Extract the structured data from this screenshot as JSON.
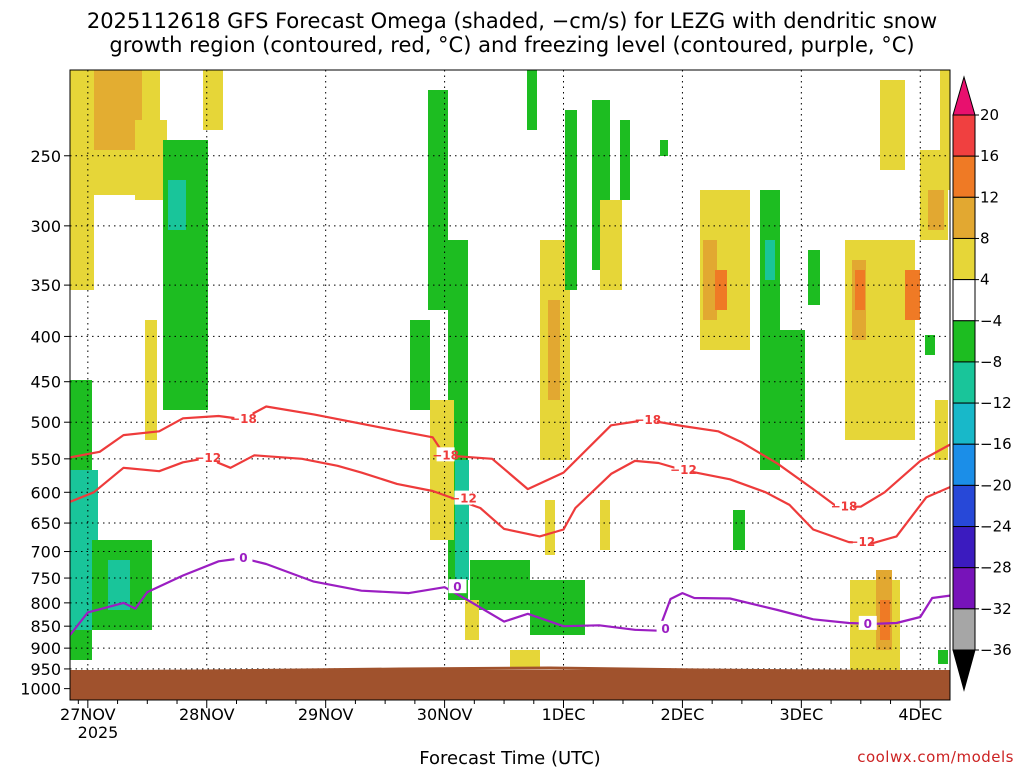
{
  "title_line1": "2025112618 GFS Forecast Omega (shaded, −cm/s) for LEZG with dendritic snow",
  "title_line2": "growth region (contoured, red, °C) and freezing level (contoured, purple, °C)",
  "credit": "coolwx.com/models",
  "chart_data": {
    "type": "heatmap",
    "title": "2025112618 GFS Forecast Omega (shaded, −cm/s) for LEZG with dendritic snow growth region (contoured, red, °C) and freezing level (contoured, purple, °C)",
    "xlabel": "Forecast Time (UTC)",
    "ylabel": "",
    "x_ticks": [
      "27NOV",
      "28NOV",
      "29NOV",
      "30NOV",
      "1DEC",
      "2DEC",
      "3DEC",
      "4DEC"
    ],
    "x_tick_sublabel": "2025",
    "x_range_days": [
      26.85,
      34.25
    ],
    "y_ticks": [
      250,
      300,
      350,
      400,
      450,
      500,
      550,
      600,
      650,
      700,
      750,
      800,
      850,
      900,
      950,
      1000
    ],
    "y_range_hpa": [
      200,
      1030
    ],
    "y_scale": "log",
    "grid": true,
    "colorbar": {
      "labels": [
        "20",
        "16",
        "12",
        "8",
        "4",
        "−4",
        "−8",
        "−12",
        "−16",
        "−20",
        "−24",
        "−28",
        "−32",
        "−36"
      ],
      "colors": [
        "#e8106e",
        "#f04040",
        "#ef7a25",
        "#e2a831",
        "#e6d638",
        "#ffffff",
        "#1dbd21",
        "#19c59a",
        "#18b8c9",
        "#1b8ee8",
        "#2748d8",
        "#3b1bbf",
        "#7713b9",
        "#a6a6a6",
        "#000000"
      ]
    },
    "contours": [
      {
        "name": "-18",
        "color": "#ee3b3b",
        "points": [
          [
            26.85,
            548
          ],
          [
            27.1,
            540
          ],
          [
            27.3,
            517
          ],
          [
            27.6,
            512
          ],
          [
            27.8,
            495
          ],
          [
            28.1,
            492
          ],
          [
            28.3,
            496
          ],
          [
            28.5,
            480
          ],
          [
            28.9,
            490
          ],
          [
            29.5,
            508
          ],
          [
            29.9,
            520
          ],
          [
            30.0,
            545
          ],
          [
            30.4,
            550
          ],
          [
            30.7,
            595
          ],
          [
            31.0,
            570
          ],
          [
            31.4,
            504
          ],
          [
            31.7,
            497
          ],
          [
            32.0,
            505
          ],
          [
            32.3,
            512
          ],
          [
            32.5,
            527
          ],
          [
            32.8,
            557
          ],
          [
            33.1,
            595
          ],
          [
            33.3,
            623
          ],
          [
            33.5,
            623
          ],
          [
            33.7,
            600
          ],
          [
            34.0,
            553
          ],
          [
            34.25,
            530
          ]
        ],
        "labels": [
          [
            28.3,
            496
          ],
          [
            30.0,
            545
          ],
          [
            31.7,
            497
          ],
          [
            33.35,
            623
          ]
        ]
      },
      {
        "name": "-12",
        "color": "#ee3b3b",
        "points": [
          [
            26.85,
            615
          ],
          [
            27.05,
            600
          ],
          [
            27.3,
            563
          ],
          [
            27.6,
            568
          ],
          [
            27.8,
            555
          ],
          [
            28.0,
            549
          ],
          [
            28.2,
            563
          ],
          [
            28.4,
            545
          ],
          [
            28.8,
            550
          ],
          [
            29.1,
            560
          ],
          [
            29.3,
            570
          ],
          [
            29.6,
            587
          ],
          [
            29.9,
            598
          ],
          [
            30.3,
            625
          ],
          [
            30.5,
            660
          ],
          [
            30.8,
            673
          ],
          [
            31.0,
            661
          ],
          [
            31.1,
            625
          ],
          [
            31.4,
            572
          ],
          [
            31.6,
            553
          ],
          [
            31.8,
            556
          ],
          [
            32.0,
            566
          ],
          [
            32.4,
            580
          ],
          [
            32.7,
            600
          ],
          [
            32.9,
            620
          ],
          [
            33.1,
            661
          ],
          [
            33.4,
            683
          ],
          [
            33.6,
            685
          ],
          [
            33.8,
            673
          ],
          [
            34.05,
            608
          ],
          [
            34.25,
            592
          ]
        ],
        "labels": [
          [
            28.0,
            549
          ],
          [
            30.15,
            610
          ],
          [
            32.0,
            566
          ],
          [
            33.5,
            683
          ]
        ]
      },
      {
        "name": "0",
        "color": "#9b1ec2",
        "points": [
          [
            26.85,
            870
          ],
          [
            27.0,
            820
          ],
          [
            27.3,
            800
          ],
          [
            27.4,
            812
          ],
          [
            27.5,
            778
          ],
          [
            27.8,
            745
          ],
          [
            28.1,
            718
          ],
          [
            28.3,
            712
          ],
          [
            28.5,
            723
          ],
          [
            28.9,
            757
          ],
          [
            29.3,
            775
          ],
          [
            29.7,
            780
          ],
          [
            30.0,
            768
          ],
          [
            30.2,
            795
          ],
          [
            30.5,
            840
          ],
          [
            30.7,
            823
          ],
          [
            31.0,
            850
          ],
          [
            31.3,
            848
          ],
          [
            31.6,
            858
          ],
          [
            31.8,
            860
          ],
          [
            31.9,
            792
          ],
          [
            32.0,
            780
          ],
          [
            32.1,
            790
          ],
          [
            32.4,
            791
          ],
          [
            32.8,
            815
          ],
          [
            33.1,
            835
          ],
          [
            33.4,
            843
          ],
          [
            33.6,
            845
          ],
          [
            33.8,
            843
          ],
          [
            34.0,
            830
          ],
          [
            34.1,
            790
          ],
          [
            34.25,
            785
          ]
        ],
        "labels": [
          [
            28.3,
            712
          ],
          [
            30.1,
            768
          ],
          [
            31.85,
            856
          ],
          [
            33.55,
            845
          ]
        ]
      }
    ],
    "contour_labels": [
      "−18",
      "−12",
      "0"
    ]
  }
}
